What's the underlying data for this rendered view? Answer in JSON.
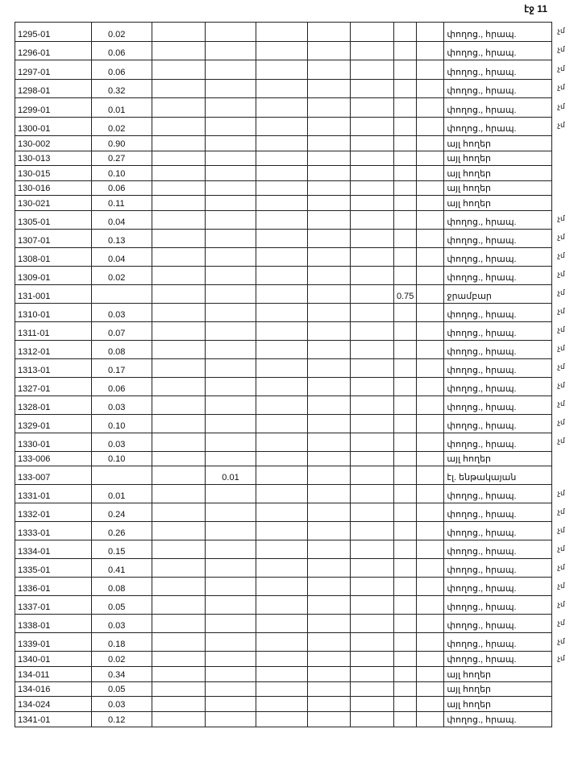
{
  "page_label": "էջ 11",
  "rows": [
    {
      "id": "1295-01",
      "area": "0.02",
      "type": "փողոց., հրապ.",
      "mark": "չմ"
    },
    {
      "id": "1296-01",
      "area": "0.06",
      "type": "փողոց., հրապ.",
      "mark": "չմ"
    },
    {
      "id": "1297-01",
      "area": "0.06",
      "type": "փողոց., հրապ.",
      "mark": "չմ"
    },
    {
      "id": "1298-01",
      "area": "0.32",
      "type": "փողոց., հրապ.",
      "mark": "չմ"
    },
    {
      "id": "1299-01",
      "area": "0.01",
      "type": "փողոց., հրապ.",
      "mark": "չմ"
    },
    {
      "id": "1300-01",
      "area": "0.02",
      "type": "փողոց., հրապ.",
      "mark": "չմ"
    },
    {
      "id": "130-002",
      "area": "0.90",
      "type": "այլ հողեր"
    },
    {
      "id": "130-013",
      "area": "0.27",
      "type": "այլ հողեր"
    },
    {
      "id": "130-015",
      "area": "0.10",
      "type": "այլ հողեր"
    },
    {
      "id": "130-016",
      "area": "0.06",
      "type": "այլ հողեր"
    },
    {
      "id": "130-021",
      "area": "0.11",
      "type": "այլ հողեր"
    },
    {
      "id": "1305-01",
      "area": "0.04",
      "type": "փողոց., հրապ.",
      "mark": "չմ"
    },
    {
      "id": "1307-01",
      "area": "0.13",
      "type": "փողոց., հրապ.",
      "mark": "չմ"
    },
    {
      "id": "1308-01",
      "area": "0.04",
      "type": "փողոց., հրապ.",
      "mark": "չմ"
    },
    {
      "id": "1309-01",
      "area": "0.02",
      "type": "փողոց., հրապ.",
      "mark": "չմ"
    },
    {
      "id": "131-001",
      "area": "",
      "col8": "0.75",
      "type": "ջրամբար",
      "mark": "չմ"
    },
    {
      "id": "1310-01",
      "area": "0.03",
      "type": "փողոց., հրապ.",
      "mark": "չմ"
    },
    {
      "id": "1311-01",
      "area": "0.07",
      "type": "փողոց., հրապ.",
      "mark": "չմ"
    },
    {
      "id": "1312-01",
      "area": "0.08",
      "type": "փողոց., հրապ.",
      "mark": "չմ"
    },
    {
      "id": "1313-01",
      "area": "0.17",
      "type": "փողոց., հրապ.",
      "mark": "չմ"
    },
    {
      "id": "1327-01",
      "area": "0.06",
      "type": "փողոց., հրապ.",
      "mark": "չմ"
    },
    {
      "id": "1328-01",
      "area": "0.03",
      "type": "փողոց., հրապ.",
      "mark": "չմ"
    },
    {
      "id": "1329-01",
      "area": "0.10",
      "type": "փողոց., հրապ.",
      "mark": "չմ"
    },
    {
      "id": "1330-01",
      "area": "0.03",
      "type": "փողոց., հրապ.",
      "mark": "չմ"
    },
    {
      "id": "133-006",
      "area": "0.10",
      "type": "այլ հողեր"
    },
    {
      "id": "133-007",
      "area": "",
      "col4": "0.01",
      "type": "էլ. ենթակայան"
    },
    {
      "id": "1331-01",
      "area": "0.01",
      "type": "փողոց., հրապ.",
      "mark": "չմ"
    },
    {
      "id": "1332-01",
      "area": "0.24",
      "type": "փողոց., հրապ.",
      "mark": "չմ"
    },
    {
      "id": "1333-01",
      "area": "0.26",
      "type": "փողոց., հրապ.",
      "mark": "չմ"
    },
    {
      "id": "1334-01",
      "area": "0.15",
      "type": "փողոց., հրապ.",
      "mark": "չմ"
    },
    {
      "id": "1335-01",
      "area": "0.41",
      "type": "փողոց., հրապ.",
      "mark": "չմ"
    },
    {
      "id": "1336-01",
      "area": "0.08",
      "type": "փողոց., հրապ.",
      "mark": "չմ"
    },
    {
      "id": "1337-01",
      "area": "0.05",
      "type": "փողոց., հրապ.",
      "mark": "չմ"
    },
    {
      "id": "1338-01",
      "area": "0.03",
      "type": "փողոց., հրապ.",
      "mark": "չմ"
    },
    {
      "id": "1339-01",
      "area": "0.18",
      "type": "փողոց., հրապ.",
      "mark": "չմ"
    },
    {
      "id": "1340-01",
      "area": "0.02",
      "type": "փողոց., հրապ.",
      "mark": "չմ"
    },
    {
      "id": "134-011",
      "area": "0.34",
      "type": "այլ հողեր"
    },
    {
      "id": "134-016",
      "area": "0.05",
      "type": "այլ հողեր"
    },
    {
      "id": "134-024",
      "area": "0.03",
      "type": "այլ հողեր"
    },
    {
      "id": "1341-01",
      "area": "0.12",
      "type": "փողոց., հրապ."
    }
  ]
}
